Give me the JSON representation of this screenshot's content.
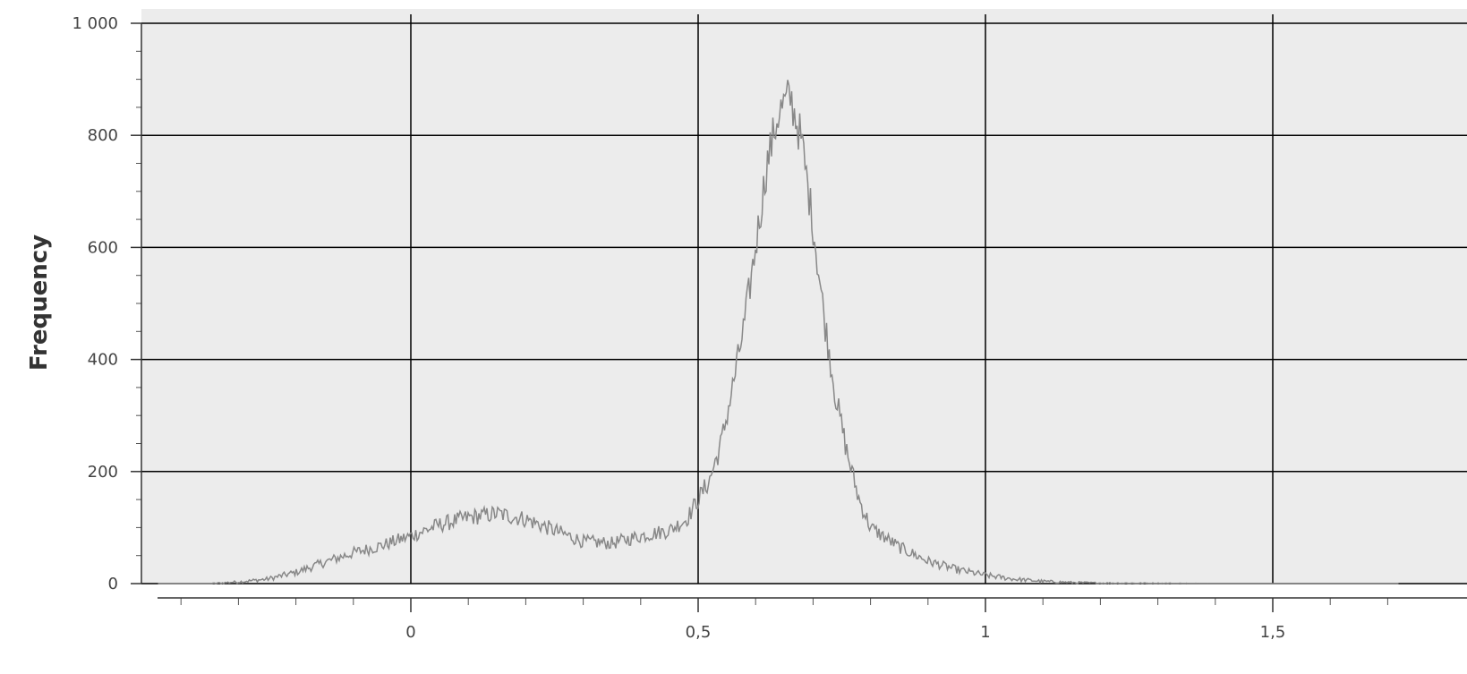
{
  "chart_data": {
    "type": "line",
    "title": "",
    "xlabel": "",
    "ylabel": "Frequency",
    "xlim": [
      -0.45,
      1.72
    ],
    "ylim": [
      0,
      1000
    ],
    "x_ticks": [
      0,
      0.5,
      1,
      1.5
    ],
    "x_tick_labels": [
      "0",
      "0,5",
      "1",
      "1,5"
    ],
    "y_ticks": [
      0,
      200,
      400,
      600,
      800,
      1000
    ],
    "y_tick_labels": [
      "0",
      "200",
      "400",
      "600",
      "800",
      "1 000"
    ],
    "grid": true,
    "colors": {
      "plot_background": "#ececec",
      "series": "#888888",
      "grid": "#000000"
    },
    "series": [
      {
        "x": [
          -0.44,
          -0.35,
          -0.3,
          -0.25,
          -0.2,
          -0.15,
          -0.1,
          -0.05,
          0,
          0.05,
          0.1,
          0.15,
          0.2,
          0.25,
          0.3,
          0.35,
          0.4,
          0.45,
          0.48,
          0.5,
          0.52,
          0.54,
          0.56,
          0.58,
          0.6,
          0.62,
          0.64,
          0.66,
          0.68,
          0.7,
          0.72,
          0.74,
          0.76,
          0.78,
          0.8,
          0.85,
          0.9,
          0.95,
          1,
          1.05,
          1.1,
          1.15,
          1.2,
          1.3,
          1.4,
          1.5,
          1.6,
          1.72
        ],
        "values": [
          0,
          0,
          3,
          8,
          20,
          38,
          55,
          68,
          85,
          105,
          118,
          125,
          115,
          95,
          75,
          72,
          85,
          95,
          115,
          150,
          185,
          250,
          350,
          460,
          600,
          750,
          840,
          870,
          790,
          640,
          470,
          330,
          230,
          150,
          100,
          65,
          40,
          25,
          15,
          8,
          4,
          2,
          1,
          0.5,
          0,
          0,
          0,
          0
        ]
      }
    ]
  }
}
